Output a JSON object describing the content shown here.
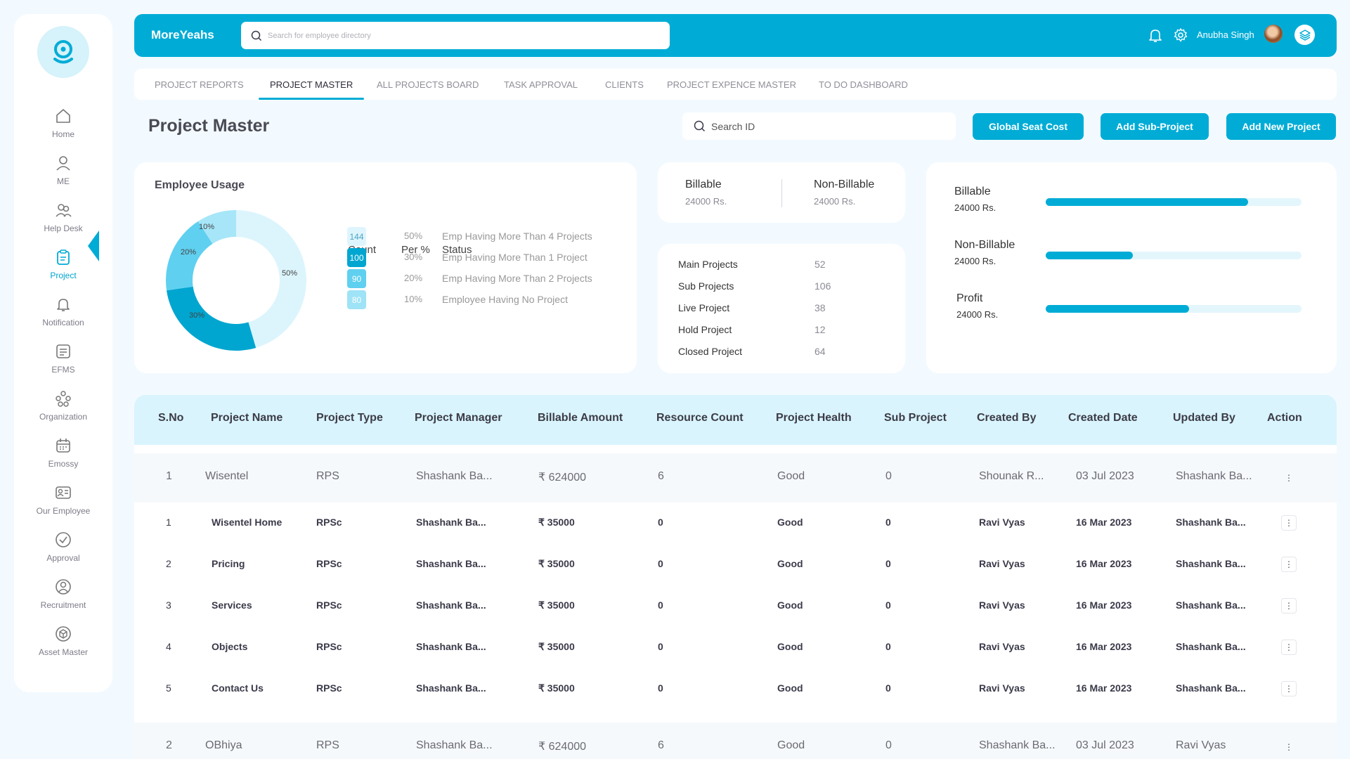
{
  "app": {
    "brand": "MoreYeahs"
  },
  "header": {
    "search_placeholder": "Search for employee directory",
    "user_name": "Anubha Singh"
  },
  "sidebar": {
    "items": [
      {
        "label": "Home",
        "icon": "home-icon"
      },
      {
        "label": "ME",
        "icon": "user-icon"
      },
      {
        "label": "Help Desk",
        "icon": "users-icon"
      },
      {
        "label": "Project",
        "icon": "clipboard-icon"
      },
      {
        "label": "Notification",
        "icon": "bell-icon"
      },
      {
        "label": "EFMS",
        "icon": "document-icon"
      },
      {
        "label": "Organization",
        "icon": "organization-icon"
      },
      {
        "label": "Emossy",
        "icon": "calendar-icon"
      },
      {
        "label": "Our Employee",
        "icon": "id-card-icon"
      },
      {
        "label": "Approval",
        "icon": "check-circle-icon"
      },
      {
        "label": "Recruitment",
        "icon": "search-user-icon"
      },
      {
        "label": "Asset Master",
        "icon": "box-icon"
      }
    ],
    "active": "Project"
  },
  "tabs": [
    "PROJECT REPORTS",
    "PROJECT MASTER",
    "ALL PROJECTS BOARD",
    "TASK APPROVAL",
    "CLIENTS",
    "PROJECT EXPENCE MASTER",
    "TO DO DASHBOARD"
  ],
  "active_tab": "PROJECT MASTER",
  "page": {
    "title": "Project Master",
    "search_placeholder": "Search ID",
    "buttons": {
      "global_seat_cost": "Global Seat Cost",
      "add_sub_project": "Add Sub-Project",
      "add_new_project": "Add New Project"
    }
  },
  "employee_usage": {
    "title": "Employee Usage",
    "headers": {
      "count": "Count",
      "per": "Per %",
      "status": "Status"
    },
    "rows": [
      {
        "count": "144",
        "per": "50%",
        "status": "Emp Having More Than 4 Projects",
        "color": "#dff5fd",
        "text_color": "#4aa5c5"
      },
      {
        "count": "100",
        "per": "30%",
        "status": "Emp Having More Than 1 Project",
        "color": "#00a6d0",
        "text_color": "#ffffff"
      },
      {
        "count": "90",
        "per": "20%",
        "status": "Emp Having More Than 2 Projects",
        "color": "#5fd0f0",
        "text_color": "#ffffff"
      },
      {
        "count": "80",
        "per": "10%",
        "status": "Employee Having No Project",
        "color": "#9ee3f6",
        "text_color": "#ffffff"
      }
    ],
    "donut": {
      "segments": [
        {
          "label": "50%",
          "value": 50,
          "color": "#dcf5fd"
        },
        {
          "label": "30%",
          "value": 30,
          "color": "#00a6d0"
        },
        {
          "label": "20%",
          "value": 20,
          "color": "#5fd0f0"
        },
        {
          "label": "10%",
          "value": 10,
          "color": "#a6e6f8"
        }
      ]
    }
  },
  "billing": {
    "billable_label": "Billable",
    "billable_value": "24000 Rs.",
    "non_billable_label": "Non-Billable",
    "non_billable_value": "24000 Rs."
  },
  "summary": [
    {
      "label": "Main Projects",
      "value": "52"
    },
    {
      "label": "Sub Projects",
      "value": "106"
    },
    {
      "label": "Live Project",
      "value": "38"
    },
    {
      "label": "Hold Project",
      "value": "12"
    },
    {
      "label": "Closed Project",
      "value": "64"
    }
  ],
  "bars": [
    {
      "label": "Billable",
      "value": "24000 Rs.",
      "fill": 0.79
    },
    {
      "label": "Non-Billable",
      "value": "24000 Rs.",
      "fill": 0.34
    },
    {
      "label": "Profit",
      "value": "24000 Rs.",
      "fill": 0.56
    }
  ],
  "table": {
    "headers": [
      "S.No",
      "Project Name",
      "Project Type",
      "Project Manager",
      "Billable Amount",
      "Resource Count",
      "Project Health",
      "Sub Project",
      "Created By",
      "Created Date",
      "Updated By",
      "Action"
    ],
    "rows": [
      {
        "kind": "main",
        "sno": "1",
        "name": "Wisentel",
        "type": "RPS",
        "manager": "Shashank Ba...",
        "amount": "₹ 624000",
        "resources": "6",
        "health": "Good",
        "sub": "0",
        "created_by": "Shounak R...",
        "created_date": "03 Jul 2023",
        "updated_by": "Shashank Ba...",
        "action": "⋮"
      },
      {
        "kind": "sub",
        "sno": "1",
        "name": "Wisentel Home",
        "type": "RPSc",
        "manager": "Shashank Ba...",
        "amount": "₹ 35000",
        "resources": "0",
        "health": "Good",
        "sub": "0",
        "created_by": "Ravi Vyas",
        "created_date": "16 Mar 2023",
        "updated_by": "Shashank Ba...",
        "action": "⋮"
      },
      {
        "kind": "sub",
        "sno": "2",
        "name": "Pricing",
        "type": "RPSc",
        "manager": "Shashank Ba...",
        "amount": "₹ 35000",
        "resources": "0",
        "health": "Good",
        "sub": "0",
        "created_by": "Ravi Vyas",
        "created_date": "16 Mar 2023",
        "updated_by": "Shashank Ba...",
        "action": "⋮"
      },
      {
        "kind": "sub",
        "sno": "3",
        "name": "Services",
        "type": "RPSc",
        "manager": "Shashank Ba...",
        "amount": "₹ 35000",
        "resources": "0",
        "health": "Good",
        "sub": "0",
        "created_by": "Ravi Vyas",
        "created_date": "16 Mar 2023",
        "updated_by": "Shashank Ba...",
        "action": "⋮"
      },
      {
        "kind": "sub",
        "sno": "4",
        "name": "Objects",
        "type": "RPSc",
        "manager": "Shashank Ba...",
        "amount": "₹ 35000",
        "resources": "0",
        "health": "Good",
        "sub": "0",
        "created_by": "Ravi Vyas",
        "created_date": "16 Mar 2023",
        "updated_by": "Shashank Ba...",
        "action": "⋮"
      },
      {
        "kind": "sub",
        "sno": "5",
        "name": "Contact Us",
        "type": "RPSc",
        "manager": "Shashank Ba...",
        "amount": "₹ 35000",
        "resources": "0",
        "health": "Good",
        "sub": "0",
        "created_by": "Ravi Vyas",
        "created_date": "16 Mar 2023",
        "updated_by": "Shashank Ba...",
        "action": "⋮"
      },
      {
        "kind": "main",
        "sno": "2",
        "name": "OBhiya",
        "type": "RPS",
        "manager": "Shashank Ba...",
        "amount": "₹ 624000",
        "resources": "6",
        "health": "Good",
        "sub": "0",
        "created_by": "Shashank Ba...",
        "created_date": "03 Jul 2023",
        "updated_by": "Ravi Vyas",
        "action": "⋮"
      }
    ]
  }
}
